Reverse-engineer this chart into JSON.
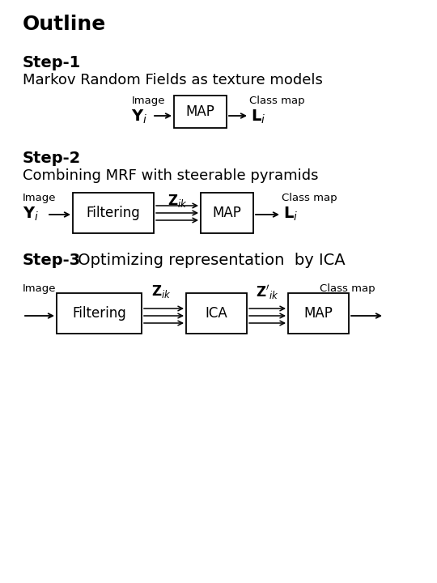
{
  "bg_color": "#ffffff",
  "title": "Outline",
  "step1_bold": "Step-1",
  "step1_text": "Markov Random Fields as texture models",
  "step2_bold": "Step-2",
  "step2_text": "Combining MRF with steerable pyramids",
  "step3_bold": "Step-3",
  "step3_rest": " Optimizing representation  by ICA"
}
